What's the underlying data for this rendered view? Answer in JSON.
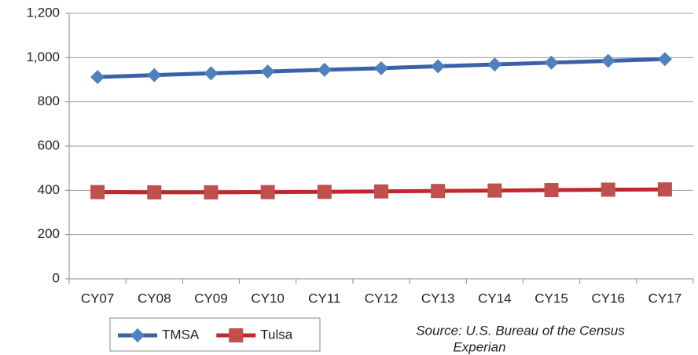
{
  "chart_data": {
    "type": "line",
    "categories": [
      "CY07",
      "CY08",
      "CY09",
      "CY10",
      "CY11",
      "CY12",
      "CY13",
      "CY14",
      "CY15",
      "CY16",
      "CY17"
    ],
    "series": [
      {
        "name": "TMSA",
        "color": "#3a62a8",
        "marker_color": "#4f81bd",
        "marker": "diamond",
        "values": [
          912,
          921,
          929,
          937,
          945,
          952,
          961,
          969,
          977,
          985,
          993
        ]
      },
      {
        "name": "Tulsa",
        "color": "#c0282d",
        "marker_color": "#c0504d",
        "marker": "square",
        "values": [
          392,
          391,
          391,
          392,
          393,
          395,
          397,
          399,
          401,
          403,
          404
        ]
      }
    ],
    "ylim": [
      0,
      1200
    ],
    "yticks": [
      0,
      200,
      400,
      600,
      800,
      {
        "value": 1000,
        "label": "1,000"
      },
      {
        "value": 1200,
        "label": "1,200"
      }
    ],
    "grid": true,
    "legend": "bottom-left",
    "annotations": [
      "Source: U.S. Bureau of the Census",
      "Experian"
    ]
  }
}
